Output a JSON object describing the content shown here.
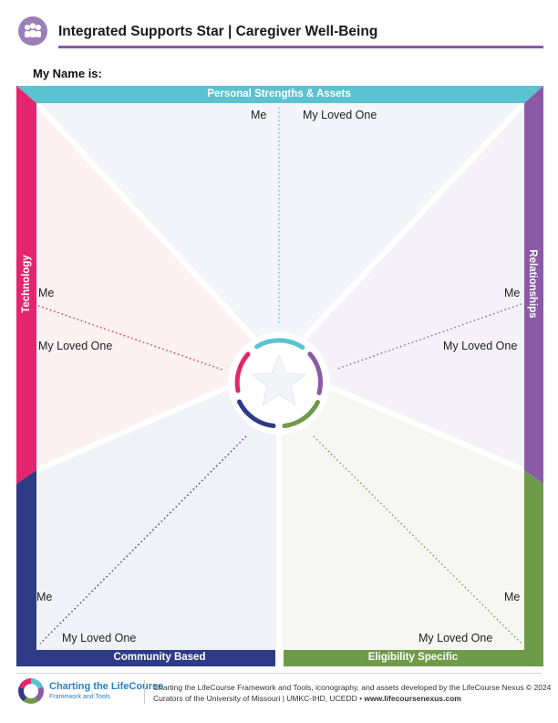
{
  "header": {
    "title": "Integrated Supports Star | Caregiver Well-Being",
    "logo_icon": "people-group-icon"
  },
  "form": {
    "name_label": "My Name is:"
  },
  "domains": {
    "top": {
      "label": "Personal Strengths & Assets",
      "color": "#5bc2d0"
    },
    "right": {
      "label": "Relationships",
      "color": "#8a5aa6"
    },
    "bottom_right": {
      "label": "Eligibility Specific",
      "color": "#6f9a4a"
    },
    "bottom_left": {
      "label": "Community Based",
      "color": "#2f3b87"
    },
    "left": {
      "label": "Technology",
      "color": "#e5246e"
    }
  },
  "sections": {
    "me": "Me",
    "loved_one": "My Loved One"
  },
  "footer": {
    "brand_name": "Charting the LifeCourse",
    "brand_sub": "Framework and Tools",
    "credit_line1": "Charting the LifeCourse Framework and Tools, iconography, and assets developed by the LifeCourse Nexus © 2024",
    "credit_line2": "Curators of the University of Missouri | UMKC-IHD, UCEDD • ",
    "credit_url": "www.lifecoursenexus.com"
  }
}
